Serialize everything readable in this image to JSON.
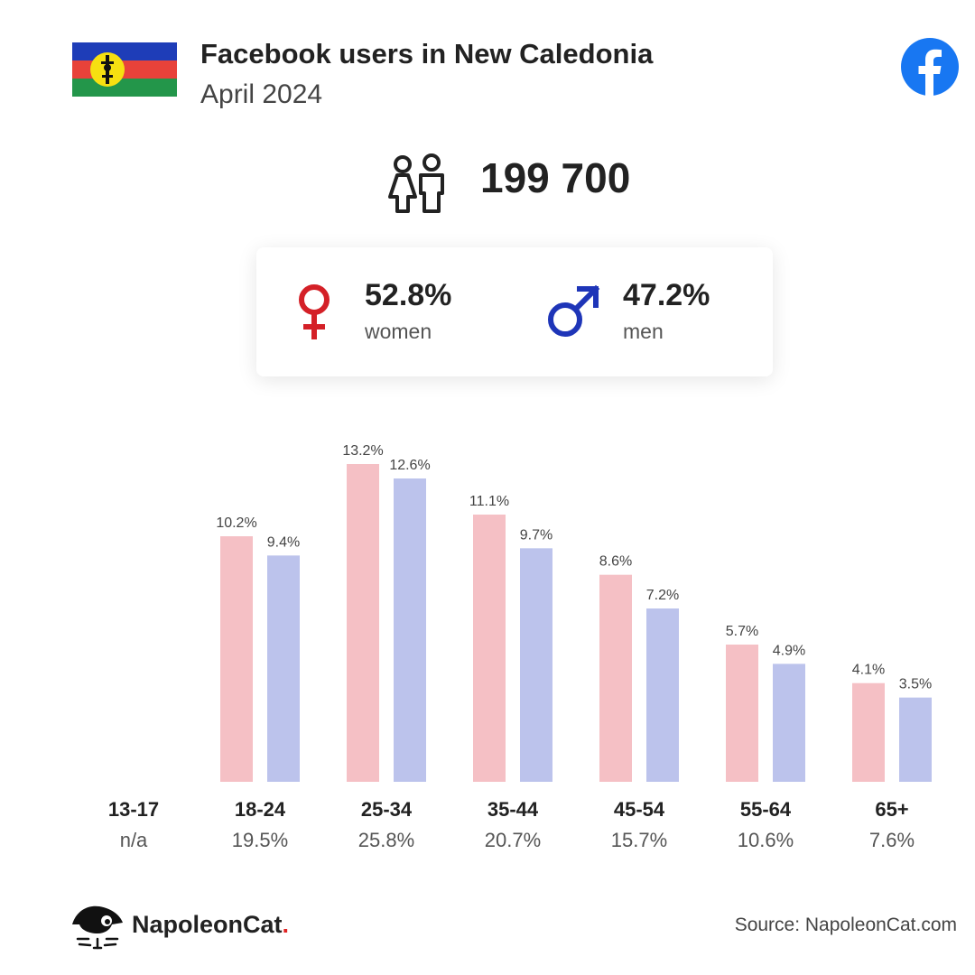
{
  "header": {
    "title": "Facebook users in New Caledonia",
    "subtitle": "April 2024"
  },
  "icons": {
    "flag": "new-caledonia-flag",
    "platform": "facebook-logo",
    "users": "users-icon",
    "female": "female-symbol",
    "male": "male-symbol",
    "brand": "napoleoncat-logo"
  },
  "summary": {
    "total_users": "199 700",
    "women": {
      "percent": "52.8%",
      "label": "women"
    },
    "men": {
      "percent": "47.2%",
      "label": "men"
    }
  },
  "colors": {
    "women_bar": "#f5c0c5",
    "men_bar": "#bcc3ec",
    "female_symbol": "#d42027",
    "male_symbol": "#1e35b8",
    "facebook": "#1877f2"
  },
  "chart_data": {
    "type": "bar",
    "categories": [
      "13-17",
      "18-24",
      "25-34",
      "35-44",
      "45-54",
      "55-64",
      "65+"
    ],
    "category_totals": [
      "n/a",
      "19.5%",
      "25.8%",
      "20.7%",
      "15.7%",
      "10.6%",
      "7.6%"
    ],
    "series": [
      {
        "values": [
          null,
          10.2,
          13.2,
          11.1,
          8.6,
          5.7,
          4.1
        ],
        "labels": [
          "",
          "10.2%",
          "13.2%",
          "11.1%",
          "8.6%",
          "5.7%",
          "4.1%"
        ],
        "color": "#f5c0c5"
      },
      {
        "values": [
          null,
          9.4,
          12.6,
          9.7,
          7.2,
          4.9,
          3.5
        ],
        "labels": [
          "",
          "9.4%",
          "12.6%",
          "9.7%",
          "7.2%",
          "4.9%",
          "3.5%"
        ],
        "color": "#bcc3ec"
      }
    ],
    "ylim": [
      0,
      13.2
    ],
    "grid": false,
    "title": "",
    "xlabel": "",
    "ylabel": ""
  },
  "footer": {
    "brand": "NapoleonCat",
    "brand_dot": ".",
    "source": "Source: NapoleonCat.com"
  }
}
